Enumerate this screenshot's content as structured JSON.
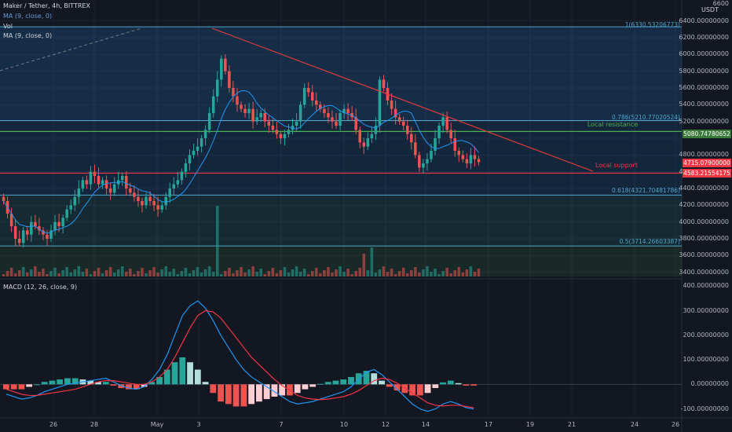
{
  "header": {
    "symbol_line": "Maker / Tether, 4h, BITTREX",
    "ma1": "MA (9, close, 0)",
    "vol": "Vol",
    "ma2": "MA (9, close, 0)",
    "macd": "MACD (12, 26, close, 9)",
    "currency": "USDT"
  },
  "price_axis": [
    "6600",
    "6400.00000000",
    "6200.00000000",
    "6000.00000000",
    "5800.00000000",
    "5600.00000000",
    "5400.00000000",
    "5200.00000000",
    "4800.00000000",
    "4600.00000000",
    "4400.00000000",
    "4200.00000000",
    "4000.00000000",
    "3800.00000000",
    "3600.00000000",
    "3400.00000000"
  ],
  "macd_axis": [
    "400.00000000",
    "300.00000000",
    "200.00000000",
    "100.00000000",
    "0.00000000",
    "-100.00000000"
  ],
  "date_axis": [
    "26",
    "28",
    "May",
    "3",
    "5",
    "7",
    "10",
    "12",
    "14",
    "17",
    "19",
    "21",
    "24",
    "26"
  ],
  "price_tags": [
    {
      "label": "5080.74780652",
      "color": "#3c7a3c"
    },
    {
      "label": "4715.07900000",
      "color": "#f23645"
    },
    {
      "label": "4583.21554175",
      "color": "#f23645"
    }
  ],
  "fib_levels": [
    {
      "label": "1(6330.53206773)"
    },
    {
      "label": "0.786(5210.77020524)"
    },
    {
      "label": "0.618(4321.70481786)"
    },
    {
      "label": "0.5(3714.26603387)"
    }
  ],
  "annotations": {
    "resistance": "Local resistance",
    "support": "Local support"
  },
  "colors": {
    "background": "#131722",
    "up": "#26a69a",
    "down": "#ef5350",
    "resistance": "#4caf50",
    "support": "#f23645",
    "fib": "#4fa6c9",
    "ma": "#2196f3"
  },
  "chart_data": [
    {
      "type": "candlestick",
      "title": "Maker / Tether, 4h, BITTREX",
      "ylim": [
        3350,
        6650
      ],
      "fib_retracement": [
        {
          "level": 1,
          "price": 6330.53206773
        },
        {
          "level": 0.786,
          "price": 5210.77020524
        },
        {
          "level": 0.618,
          "price": 4321.70481786
        },
        {
          "level": 0.5,
          "price": 3714.26603387
        }
      ],
      "horizontal_lines": [
        {
          "name": "Local resistance",
          "price": 5080.74780652
        },
        {
          "name": "Local support",
          "price": 4583.21554175
        }
      ],
      "last_price": 4715.079,
      "close_series": [
        4250,
        4100,
        3950,
        3800,
        3750,
        3900,
        3850,
        4000,
        3950,
        3900,
        3850,
        3800,
        3900,
        4000,
        3950,
        4050,
        4150,
        4200,
        4300,
        4400,
        4500,
        4450,
        4600,
        4550,
        4450,
        4500,
        4400,
        4350,
        4450,
        4500,
        4550,
        4400,
        4350,
        4300,
        4250,
        4200,
        4300,
        4250,
        4200,
        4150,
        4200,
        4300,
        4400,
        4450,
        4500,
        4600,
        4700,
        4800,
        4850,
        4900,
        5000,
        5100,
        5300,
        5500,
        5700,
        5950,
        5800,
        5600,
        5500,
        5400,
        5350,
        5300,
        5350,
        5200,
        5250,
        5300,
        5200,
        5150,
        5100,
        5050,
        5000,
        5050,
        5100,
        5150,
        5200,
        5400,
        5600,
        5550,
        5450,
        5400,
        5350,
        5300,
        5250,
        5200,
        5150,
        5300,
        5350,
        5300,
        5250,
        5100,
        4950,
        4900,
        5000,
        5050,
        5150,
        5700,
        5600,
        5450,
        5350,
        5250,
        5200,
        5150,
        5050,
        4950,
        4800,
        4650,
        4700,
        4750,
        4850,
        5000,
        5150,
        5250,
        5100,
        5000,
        4850,
        4800,
        4750,
        4700,
        4800,
        4750,
        4715
      ]
    },
    {
      "type": "line",
      "title": "MACD (12, 26, close, 9)",
      "ylim": [
        -130,
        420
      ],
      "series": [
        {
          "values": [
            -40,
            -50,
            -60,
            -55,
            -45,
            -30,
            -20,
            -10,
            0,
            5,
            10,
            15,
            20,
            25,
            10,
            -5,
            -15,
            -20,
            -10,
            20,
            60,
            120,
            200,
            280,
            320,
            340,
            310,
            260,
            200,
            150,
            100,
            60,
            30,
            10,
            -10,
            -30,
            -50,
            -70,
            -80,
            -75,
            -70,
            -60,
            -50,
            -40,
            -30,
            -10,
            20,
            50,
            60,
            40,
            10,
            -20,
            -50,
            -80,
            -100,
            -110,
            -100,
            -80,
            -70,
            -80,
            -95,
            -100
          ]
        },
        {
          "values": [
            -20,
            -30,
            -40,
            -45,
            -45,
            -40,
            -35,
            -30,
            -25,
            -20,
            -10,
            0,
            10,
            15,
            15,
            10,
            5,
            0,
            0,
            10,
            30,
            60,
            110,
            170,
            230,
            280,
            300,
            295,
            270,
            230,
            190,
            150,
            110,
            80,
            50,
            20,
            -5,
            -25,
            -45,
            -55,
            -60,
            -62,
            -60,
            -55,
            -50,
            -40,
            -25,
            -5,
            15,
            25,
            20,
            5,
            -15,
            -35,
            -55,
            -75,
            -85,
            -88,
            -85,
            -85,
            -90,
            -95
          ]
        }
      ]
    }
  ]
}
